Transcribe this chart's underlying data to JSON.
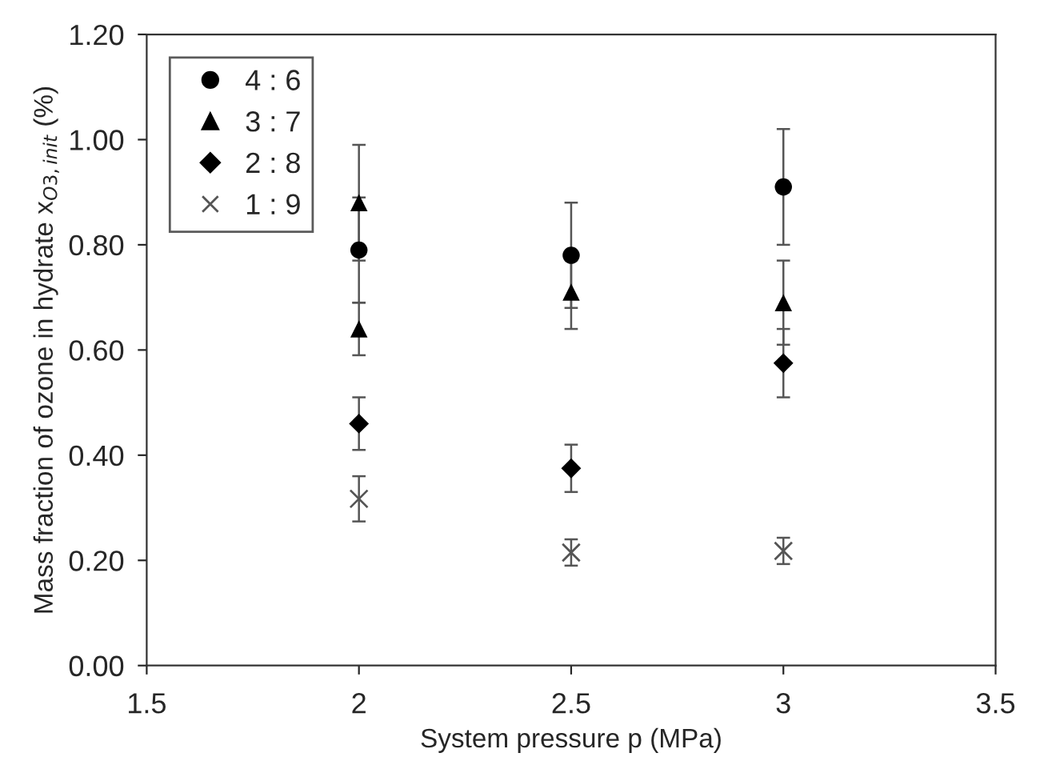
{
  "chart_data": {
    "type": "scatter",
    "xlabel": "System pressure p (MPa)",
    "ylabel": "Mass fraction of ozone in hydrate x$_{O3,init}$ (%)",
    "xlim": [
      1.5,
      3.5
    ],
    "xticks": [
      1.5,
      2,
      2.5,
      3,
      3.5
    ],
    "ylim": [
      0,
      1.2
    ],
    "yticks": [
      {
        "value": 0,
        "label": "0.00"
      },
      {
        "value": 0.2,
        "label": "0.20"
      },
      {
        "value": 0.4,
        "label": "0.40"
      },
      {
        "value": 0.6,
        "label": "0.60"
      },
      {
        "value": 0.8,
        "label": "0.80"
      },
      {
        "value": 1.0,
        "label": "1.00"
      },
      {
        "value": 1.2,
        "label": "1.20"
      }
    ],
    "grid": false,
    "legend": "top left",
    "series": [
      {
        "name": "4 : 6",
        "color": "#000000",
        "marker": "circle",
        "x": [
          2,
          2.5,
          3
        ],
        "values": [
          0.79,
          0.78,
          0.91
        ],
        "errors": [
          0.1,
          0.1,
          0.11
        ]
      },
      {
        "name": "3 : 7",
        "color": "#000000",
        "marker": "triangle",
        "x": [
          2,
          2,
          2.5,
          3
        ],
        "values": [
          0.88,
          0.64,
          0.71,
          0.69
        ],
        "errors": [
          0.11,
          0.05,
          0.07,
          0.08
        ]
      },
      {
        "name": "2 : 8",
        "color": "#000000",
        "marker": "diamond",
        "x": [
          2,
          2.5,
          3
        ],
        "values": [
          0.46,
          0.375,
          0.575
        ],
        "errors": [
          0.05,
          0.045,
          0.065
        ]
      },
      {
        "name": "1 : 9",
        "color": "#555555",
        "marker": "cross",
        "x": [
          2,
          2.5,
          3
        ],
        "values": [
          0.317,
          0.215,
          0.218
        ],
        "errors": [
          0.043,
          0.025,
          0.025
        ]
      }
    ]
  }
}
